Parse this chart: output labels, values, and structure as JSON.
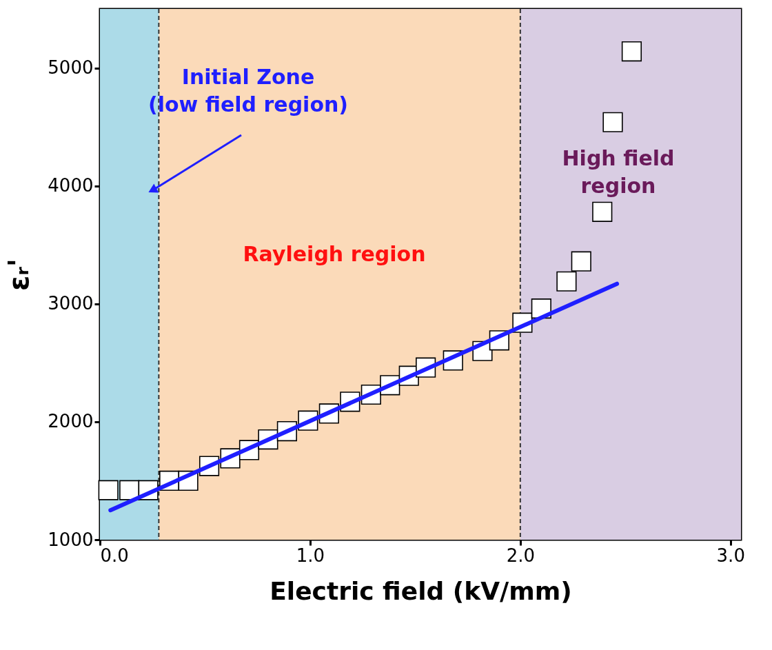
{
  "chart_data": {
    "type": "scatter",
    "xlabel": "Electric field (kV/mm)",
    "ylabel": "εᵣ'",
    "xlim": [
      0,
      3.05
    ],
    "xticks": [
      {
        "value": 0,
        "label": "0.0"
      },
      {
        "value": 1,
        "label": "1.0"
      },
      {
        "value": 2,
        "label": "2.0"
      },
      {
        "value": 3,
        "label": "3.0"
      }
    ],
    "ylim": [
      1000,
      5500
    ],
    "yticks": [
      1000,
      2000,
      3000,
      4000,
      5000
    ],
    "grid": false,
    "series": [
      {
        "marker": "square",
        "color": "#ffffff",
        "x": [
          0.04,
          0.14,
          0.23,
          0.33,
          0.42,
          0.52,
          0.62,
          0.71,
          0.8,
          0.89,
          0.99,
          1.09,
          1.19,
          1.29,
          1.38,
          1.47,
          1.55,
          1.68,
          1.82,
          1.9,
          2.01,
          2.1,
          2.22,
          2.29,
          2.39,
          2.44,
          2.53
        ],
        "values": [
          1420,
          1420,
          1420,
          1500,
          1500,
          1625,
          1690,
          1760,
          1850,
          1920,
          2010,
          2070,
          2170,
          2230,
          2310,
          2390,
          2460,
          2520,
          2600,
          2690,
          2840,
          2960,
          3190,
          3360,
          3780,
          4540,
          5140
        ]
      },
      {
        "type": "line",
        "marker": "none",
        "color": "#1f1fff",
        "x": [
          0.05,
          2.46
        ],
        "values": [
          1250,
          3170
        ]
      }
    ],
    "bands": [
      {
        "axis": "x",
        "from": 0,
        "to": 0.28,
        "color": "#acdbe8"
      },
      {
        "axis": "x",
        "from": 0.28,
        "to": 2.0,
        "color": "#fbdab9"
      },
      {
        "axis": "x",
        "from": 2.0,
        "to": 3.05,
        "color": "#d9cde3"
      }
    ],
    "ref_lines": [
      {
        "axis": "x",
        "value": 0.28,
        "color": "#333333",
        "line_style": "dashed"
      },
      {
        "axis": "x",
        "value": 2.0,
        "color": "#333333",
        "line_style": "dashed"
      }
    ],
    "annotations": [
      "Initial Zone\n(low field region)",
      "Rayleigh region",
      "High field\nregion"
    ]
  }
}
